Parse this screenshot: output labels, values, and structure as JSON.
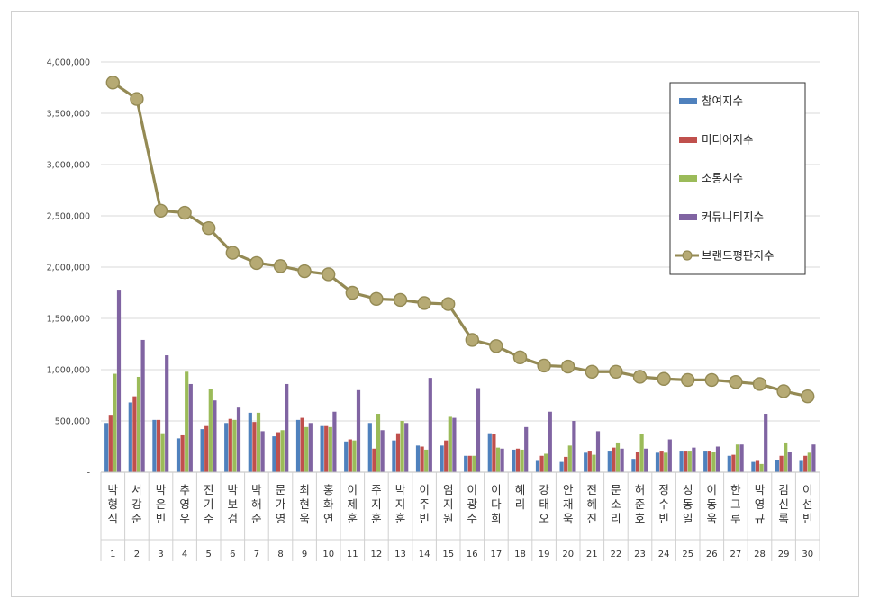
{
  "chart_data": {
    "type": "bar",
    "title": "",
    "xlabel": "",
    "ylabel": "",
    "ylim": [
      0,
      4000000
    ],
    "y_ticks": [
      0,
      500000,
      1000000,
      1500000,
      2000000,
      2500000,
      3000000,
      3500000,
      4000000
    ],
    "y_tick_labels": [
      "-",
      "500,000",
      "1,000,000",
      "1,500,000",
      "2,000,000",
      "2,500,000",
      "3,000,000",
      "3,500,000",
      "4,000,000"
    ],
    "grid": true,
    "legend_position": "top-right",
    "names": [
      "박형식",
      "서강준",
      "박은빈",
      "추영우",
      "진기주",
      "박보검",
      "박해준",
      "문가영",
      "최현욱",
      "홍화연",
      "이제훈",
      "주지훈",
      "박지훈",
      "이주빈",
      "엄지원",
      "이광수",
      "이다희",
      "혜리",
      "강태오",
      "안재욱",
      "전혜진",
      "문소리",
      "허준호",
      "정수빈",
      "성동일",
      "이동욱",
      "한그루",
      "박영규",
      "김신록",
      "이선빈"
    ],
    "categories": [
      "1",
      "2",
      "3",
      "4",
      "5",
      "6",
      "7",
      "8",
      "9",
      "10",
      "11",
      "12",
      "13",
      "14",
      "15",
      "16",
      "17",
      "18",
      "19",
      "20",
      "21",
      "22",
      "23",
      "24",
      "25",
      "26",
      "27",
      "28",
      "29",
      "30"
    ],
    "series": [
      {
        "name": "참여지수",
        "kind": "bar",
        "color": "#4f81bd",
        "values": [
          480000,
          680000,
          510000,
          330000,
          420000,
          480000,
          580000,
          350000,
          510000,
          450000,
          300000,
          480000,
          310000,
          260000,
          260000,
          160000,
          380000,
          220000,
          110000,
          100000,
          190000,
          210000,
          130000,
          190000,
          210000,
          210000,
          160000,
          100000,
          120000,
          110000
        ]
      },
      {
        "name": "미디어지수",
        "kind": "bar",
        "color": "#c0504d",
        "values": [
          560000,
          740000,
          510000,
          360000,
          450000,
          520000,
          490000,
          390000,
          530000,
          450000,
          320000,
          230000,
          380000,
          250000,
          310000,
          160000,
          370000,
          230000,
          160000,
          150000,
          210000,
          240000,
          200000,
          210000,
          210000,
          210000,
          170000,
          110000,
          160000,
          160000
        ]
      },
      {
        "name": "소통지수",
        "kind": "bar",
        "color": "#9bbb59",
        "values": [
          960000,
          930000,
          380000,
          980000,
          810000,
          510000,
          580000,
          410000,
          440000,
          440000,
          310000,
          570000,
          500000,
          220000,
          540000,
          160000,
          240000,
          220000,
          180000,
          260000,
          170000,
          290000,
          370000,
          190000,
          210000,
          200000,
          270000,
          80000,
          290000,
          190000
        ]
      },
      {
        "name": "커뮤니티지수",
        "kind": "bar",
        "color": "#8064a2",
        "values": [
          1780000,
          1290000,
          1140000,
          860000,
          700000,
          630000,
          400000,
          860000,
          480000,
          590000,
          800000,
          410000,
          480000,
          920000,
          530000,
          820000,
          230000,
          440000,
          590000,
          500000,
          400000,
          230000,
          230000,
          320000,
          240000,
          250000,
          270000,
          570000,
          200000,
          270000
        ]
      },
      {
        "name": "브랜드평판지수",
        "kind": "line",
        "color": "#948a54",
        "values": [
          3800000,
          3640000,
          2550000,
          2530000,
          2380000,
          2140000,
          2040000,
          2010000,
          1960000,
          1930000,
          1750000,
          1690000,
          1680000,
          1650000,
          1640000,
          1290000,
          1230000,
          1120000,
          1040000,
          1030000,
          980000,
          980000,
          930000,
          910000,
          900000,
          900000,
          880000,
          860000,
          790000,
          740000
        ]
      }
    ]
  }
}
